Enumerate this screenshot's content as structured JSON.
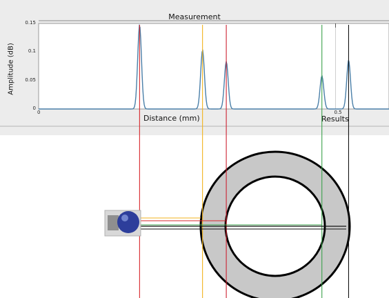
{
  "window": {
    "panel_title": "Measurement",
    "x_axis_label": "Distance (mm)",
    "y_axis_label": "Amplitude (dB)",
    "results_label": "Results"
  },
  "chart_data": {
    "type": "line",
    "title": "Measurement",
    "xlabel": "Distance (mm)",
    "ylabel": "Amplitude (dB)",
    "xlim": [
      0,
      0.59
    ],
    "ylim": [
      0,
      0.15
    ],
    "x_ticks": [
      0,
      0.5
    ],
    "x_tick_labels": [
      "0",
      "0.5"
    ],
    "y_ticks": [
      0,
      0.05,
      0.1,
      0.15
    ],
    "y_tick_labels": [
      "0",
      "0.05",
      "0.1",
      "0.15"
    ],
    "grid": "x only",
    "series": [
      {
        "color": "#4a7fa8",
        "peaks": [
          {
            "x": 0.17,
            "amplitude": 0.147
          },
          {
            "x": 0.276,
            "amplitude": 0.103
          },
          {
            "x": 0.316,
            "amplitude": 0.083
          },
          {
            "x": 0.477,
            "amplitude": 0.058
          },
          {
            "x": 0.522,
            "amplitude": 0.085
          }
        ]
      }
    ]
  },
  "markers": [
    {
      "name": "red",
      "color": "#d7262a",
      "x": 0.17
    },
    {
      "name": "yellow",
      "color": "#f2b31c",
      "x": 0.276
    },
    {
      "name": "red2",
      "color": "#cc2030",
      "x": 0.316
    },
    {
      "name": "green",
      "color": "#3aa14a",
      "x": 0.477
    },
    {
      "name": "black",
      "color": "#111111",
      "x": 0.522
    }
  ],
  "scene": {
    "ring_outer_color": "#c8c8c8",
    "ring_stroke_color": "#000000",
    "transducer_color": "#2d3e9b"
  }
}
